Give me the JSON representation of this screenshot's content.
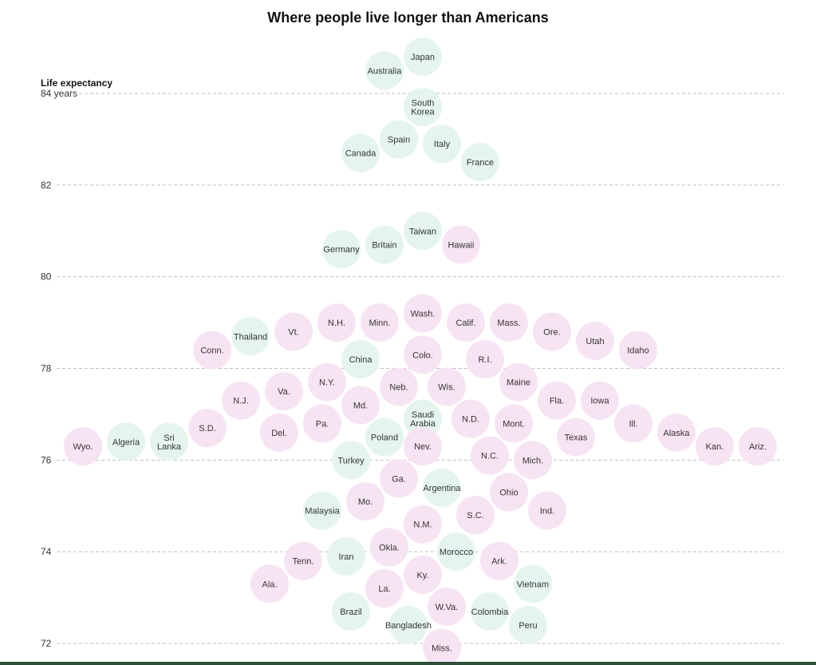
{
  "chart_data": {
    "type": "scatter",
    "title": "Where people live longer than Americans",
    "ylabel": "Life expectancy",
    "ylim": [
      72,
      84
    ],
    "yticks": [
      {
        "value": 84,
        "label": "84 years"
      },
      {
        "value": 82,
        "label": "82"
      },
      {
        "value": 80,
        "label": "80"
      },
      {
        "value": 78,
        "label": "78"
      },
      {
        "value": 76,
        "label": "76"
      },
      {
        "value": 74,
        "label": "74"
      },
      {
        "value": 72,
        "label": "72"
      }
    ],
    "grid": true,
    "colors": {
      "state": "#f7e4f3",
      "country": "#e5f5ee",
      "grid": "#bfbfbf",
      "text": "#333333"
    },
    "series": [
      {
        "kind": "country",
        "points": [
          {
            "label": "Japan",
            "y": 84.8
          },
          {
            "label": "Australia",
            "y": 84.5
          },
          {
            "label": "South Korea",
            "y": 83.7
          },
          {
            "label": "Italy",
            "y": 82.9
          },
          {
            "label": "Spain",
            "y": 83.0
          },
          {
            "label": "Canada",
            "y": 82.7
          },
          {
            "label": "France",
            "y": 82.5
          },
          {
            "label": "Taiwan",
            "y": 81.0
          },
          {
            "label": "Britain",
            "y": 80.7
          },
          {
            "label": "Germany",
            "y": 80.6
          },
          {
            "label": "Thailand",
            "y": 78.7
          },
          {
            "label": "China",
            "y": 78.2
          },
          {
            "label": "Poland",
            "y": 76.5
          },
          {
            "label": "Saudi Arabia",
            "y": 76.9
          },
          {
            "label": "Sri Lanka",
            "y": 76.4
          },
          {
            "label": "Algeria",
            "y": 76.4
          },
          {
            "label": "Turkey",
            "y": 76.0
          },
          {
            "label": "Argentina",
            "y": 75.4
          },
          {
            "label": "Malaysia",
            "y": 74.9
          },
          {
            "label": "Morocco",
            "y": 74.0
          },
          {
            "label": "Iran",
            "y": 73.9
          },
          {
            "label": "Vietnam",
            "y": 73.3
          },
          {
            "label": "Colombia",
            "y": 72.7
          },
          {
            "label": "Brazil",
            "y": 72.7
          },
          {
            "label": "Bangladesh",
            "y": 72.4
          },
          {
            "label": "Peru",
            "y": 72.4
          }
        ]
      },
      {
        "kind": "state",
        "points": [
          {
            "label": "Hawaii",
            "y": 80.7
          },
          {
            "label": "Wash.",
            "y": 79.2
          },
          {
            "label": "Minn.",
            "y": 79.0
          },
          {
            "label": "Calif.",
            "y": 79.0
          },
          {
            "label": "N.H.",
            "y": 79.0
          },
          {
            "label": "Mass.",
            "y": 79.0
          },
          {
            "label": "Vt.",
            "y": 78.8
          },
          {
            "label": "Ore.",
            "y": 78.8
          },
          {
            "label": "Utah",
            "y": 78.6
          },
          {
            "label": "Conn.",
            "y": 78.4
          },
          {
            "label": "Colo.",
            "y": 78.3
          },
          {
            "label": "Idaho",
            "y": 78.4
          },
          {
            "label": "R.I.",
            "y": 78.2
          },
          {
            "label": "N.Y.",
            "y": 77.7
          },
          {
            "label": "Neb.",
            "y": 77.6
          },
          {
            "label": "Maine",
            "y": 77.7
          },
          {
            "label": "Wis.",
            "y": 77.6
          },
          {
            "label": "Va.",
            "y": 77.5
          },
          {
            "label": "Fla.",
            "y": 77.3
          },
          {
            "label": "Iowa",
            "y": 77.3
          },
          {
            "label": "N.J.",
            "y": 77.3
          },
          {
            "label": "Md.",
            "y": 77.2
          },
          {
            "label": "N.D.",
            "y": 76.9
          },
          {
            "label": "Mont.",
            "y": 76.8
          },
          {
            "label": "Pa.",
            "y": 76.8
          },
          {
            "label": "Ill.",
            "y": 76.8
          },
          {
            "label": "S.D.",
            "y": 76.7
          },
          {
            "label": "Del.",
            "y": 76.6
          },
          {
            "label": "Alaska",
            "y": 76.6
          },
          {
            "label": "Texas",
            "y": 76.5
          },
          {
            "label": "Kan.",
            "y": 76.3
          },
          {
            "label": "Ariz.",
            "y": 76.3
          },
          {
            "label": "Wyo.",
            "y": 76.3
          },
          {
            "label": "Nev.",
            "y": 76.3
          },
          {
            "label": "N.C.",
            "y": 76.1
          },
          {
            "label": "Mich.",
            "y": 76.0
          },
          {
            "label": "Ga.",
            "y": 75.6
          },
          {
            "label": "Ohio",
            "y": 75.3
          },
          {
            "label": "Mo.",
            "y": 75.1
          },
          {
            "label": "Ind.",
            "y": 74.9
          },
          {
            "label": "S.C.",
            "y": 74.8
          },
          {
            "label": "N.M.",
            "y": 74.6
          },
          {
            "label": "Okla.",
            "y": 74.1
          },
          {
            "label": "Ark.",
            "y": 73.8
          },
          {
            "label": "Tenn.",
            "y": 73.8
          },
          {
            "label": "Ky.",
            "y": 73.5
          },
          {
            "label": "Ala.",
            "y": 73.3
          },
          {
            "label": "La.",
            "y": 73.2
          },
          {
            "label": "W.Va.",
            "y": 72.8
          },
          {
            "label": "Miss.",
            "y": 71.9
          }
        ]
      }
    ]
  }
}
